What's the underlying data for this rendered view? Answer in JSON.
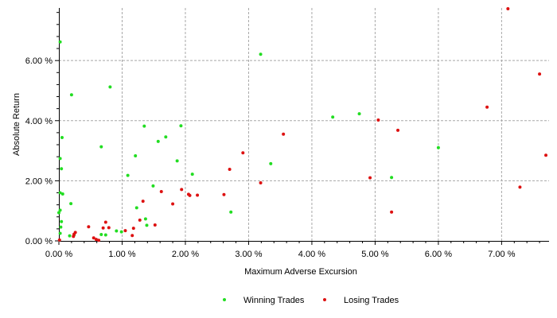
{
  "chart_data": {
    "type": "scatter",
    "title": "",
    "xlabel": "Maximum Adverse Excursion",
    "ylabel": "Absolute Return",
    "xlim": [
      0,
      7.75
    ],
    "ylim": [
      0,
      7.75
    ],
    "x_ticks": [
      0,
      1,
      2,
      3,
      4,
      5,
      6,
      7
    ],
    "x_tick_labels": [
      "0.00 %",
      "1.00 %",
      "2.00 %",
      "3.00 %",
      "4.00 %",
      "5.00 %",
      "6.00 %",
      "7.00 %"
    ],
    "y_ticks": [
      0,
      2,
      4,
      6
    ],
    "y_tick_labels": [
      "0.00 %",
      "2.00 %",
      "4.00 %",
      "6.00 %"
    ],
    "grid": true,
    "legend_position": "bottom-center",
    "series": [
      {
        "name": "Winning Trades",
        "color": "#22dd22",
        "points": [
          [
            0.02,
            6.62
          ],
          [
            0.05,
            3.44
          ],
          [
            0.02,
            2.74
          ],
          [
            0.04,
            2.4
          ],
          [
            0.02,
            1.6
          ],
          [
            0.06,
            1.56
          ],
          [
            0.02,
            1.02
          ],
          [
            0.0,
            0.94
          ],
          [
            0.04,
            0.64
          ],
          [
            0.03,
            0.46
          ],
          [
            0.02,
            0.25
          ],
          [
            0.2,
            4.86
          ],
          [
            0.19,
            1.24
          ],
          [
            0.17,
            0.17
          ],
          [
            0.24,
            0.2
          ],
          [
            0.67,
            3.13
          ],
          [
            0.81,
            5.12
          ],
          [
            0.67,
            0.21
          ],
          [
            0.74,
            0.2
          ],
          [
            0.91,
            0.33
          ],
          [
            0.99,
            0.3
          ],
          [
            1.09,
            2.18
          ],
          [
            1.21,
            2.83
          ],
          [
            1.23,
            1.1
          ],
          [
            1.35,
            3.82
          ],
          [
            1.37,
            0.73
          ],
          [
            1.39,
            0.52
          ],
          [
            1.49,
            1.83
          ],
          [
            1.57,
            3.31
          ],
          [
            1.69,
            3.46
          ],
          [
            1.87,
            2.66
          ],
          [
            1.93,
            3.83
          ],
          [
            2.11,
            2.22
          ],
          [
            2.72,
            0.96
          ],
          [
            3.19,
            6.21
          ],
          [
            3.35,
            2.57
          ],
          [
            4.33,
            4.12
          ],
          [
            4.75,
            4.23
          ],
          [
            5.26,
            2.11
          ],
          [
            6.0,
            3.1
          ]
        ]
      },
      {
        "name": "Losing Trades",
        "color": "#dd1111",
        "points": [
          [
            0.01,
            0.03
          ],
          [
            0.23,
            0.15
          ],
          [
            0.24,
            0.22
          ],
          [
            0.26,
            0.28
          ],
          [
            0.47,
            0.47
          ],
          [
            0.55,
            0.1
          ],
          [
            0.59,
            0.05
          ],
          [
            0.63,
            0.02
          ],
          [
            0.7,
            0.43
          ],
          [
            0.74,
            0.62
          ],
          [
            0.79,
            0.44
          ],
          [
            1.05,
            0.34
          ],
          [
            1.16,
            0.18
          ],
          [
            1.18,
            0.42
          ],
          [
            1.28,
            0.69
          ],
          [
            1.33,
            1.32
          ],
          [
            1.52,
            0.53
          ],
          [
            1.62,
            1.64
          ],
          [
            1.8,
            1.23
          ],
          [
            1.94,
            1.71
          ],
          [
            2.05,
            1.55
          ],
          [
            2.07,
            1.51
          ],
          [
            2.19,
            1.52
          ],
          [
            2.61,
            1.54
          ],
          [
            2.7,
            2.38
          ],
          [
            2.91,
            2.93
          ],
          [
            3.19,
            1.93
          ],
          [
            3.55,
            3.55
          ],
          [
            4.92,
            2.1
          ],
          [
            5.05,
            4.02
          ],
          [
            5.26,
            0.96
          ],
          [
            5.36,
            3.68
          ],
          [
            6.77,
            4.45
          ],
          [
            7.1,
            7.75
          ],
          [
            7.29,
            1.79
          ],
          [
            7.6,
            5.55
          ],
          [
            7.7,
            2.85
          ]
        ]
      }
    ]
  }
}
